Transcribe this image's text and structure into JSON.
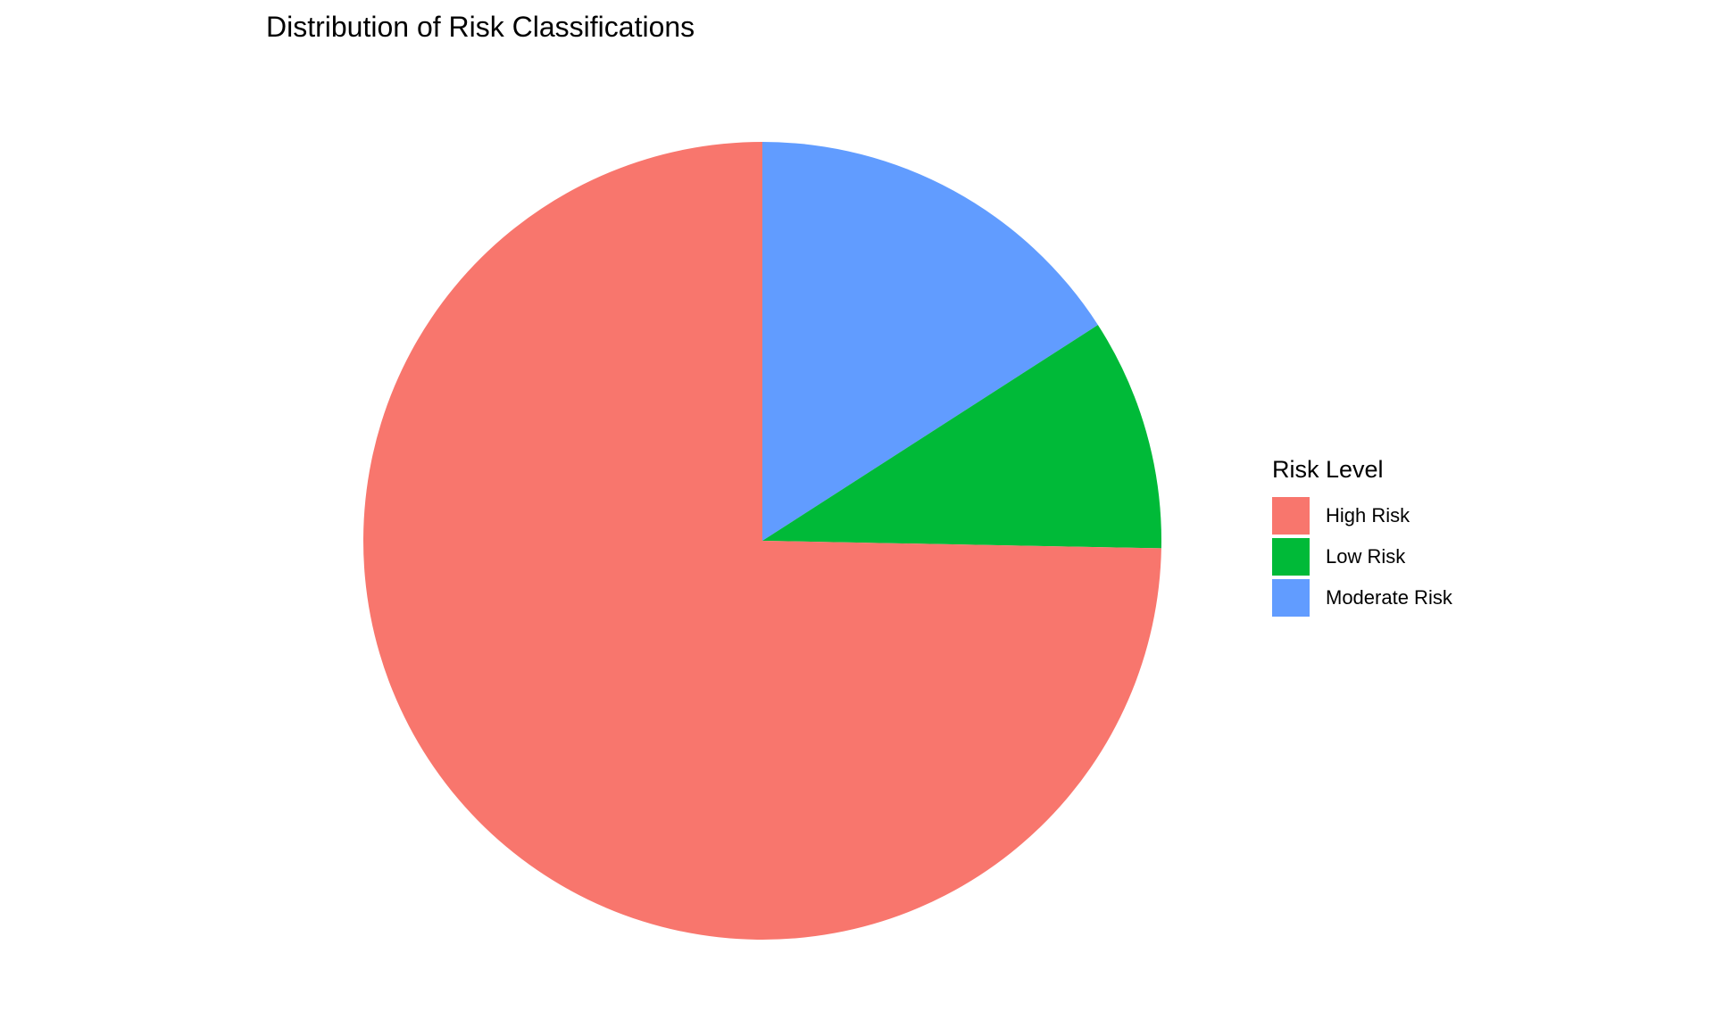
{
  "chart_data": {
    "type": "pie",
    "title": "Distribution of Risk Classifications",
    "legend_title": "Risk Level",
    "legend_position": "right",
    "direction": "clockwise",
    "start_angle": "top",
    "categories": [
      "High Risk",
      "Low Risk",
      "Moderate Risk"
    ],
    "values": [
      74.7,
      9.4,
      15.9
    ],
    "colors": [
      "#F8766D",
      "#00BA38",
      "#619CFF"
    ],
    "slice_order": [
      "Moderate Risk",
      "Low Risk",
      "High Risk"
    ]
  }
}
